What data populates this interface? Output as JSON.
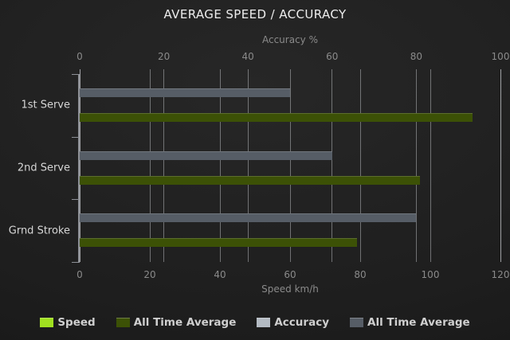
{
  "chart_data": {
    "type": "bar",
    "orientation": "horizontal",
    "title": "AVERAGE SPEED / ACCURACY",
    "categories": [
      "1st Serve",
      "2nd Serve",
      "Grnd Stroke"
    ],
    "series": [
      {
        "name": "Speed",
        "axis": "bottom",
        "color": "#a0e020",
        "values": [
          null,
          null,
          null
        ]
      },
      {
        "name": "All Time Average",
        "axis": "bottom",
        "color": "#3c5106",
        "values": [
          112,
          97,
          79
        ]
      },
      {
        "name": "Accuracy",
        "axis": "top",
        "color": "#b4bbc3",
        "values": [
          null,
          null,
          null
        ]
      },
      {
        "name": "All Time Average",
        "axis": "top",
        "color": "#565d66",
        "values": [
          50,
          60,
          80
        ]
      }
    ],
    "top_axis": {
      "label": "Accuracy %",
      "min": 0,
      "max": 100,
      "ticks": [
        0,
        20,
        40,
        60,
        80,
        100
      ]
    },
    "bottom_axis": {
      "label": "Speed km/h",
      "min": 0,
      "max": 120,
      "ticks": [
        0,
        20,
        40,
        60,
        80,
        100,
        120
      ]
    },
    "grid": true,
    "legend_position": "bottom",
    "background_color": "#1f1f1f",
    "text_color": "#8a8a8a"
  },
  "legend": {
    "items": [
      {
        "label": "Speed",
        "color": "#a0e020"
      },
      {
        "label": "All Time Average",
        "color": "#3c5106"
      },
      {
        "label": "Accuracy",
        "color": "#b4bbc3"
      },
      {
        "label": "All Time Average",
        "color": "#565d66"
      }
    ]
  }
}
